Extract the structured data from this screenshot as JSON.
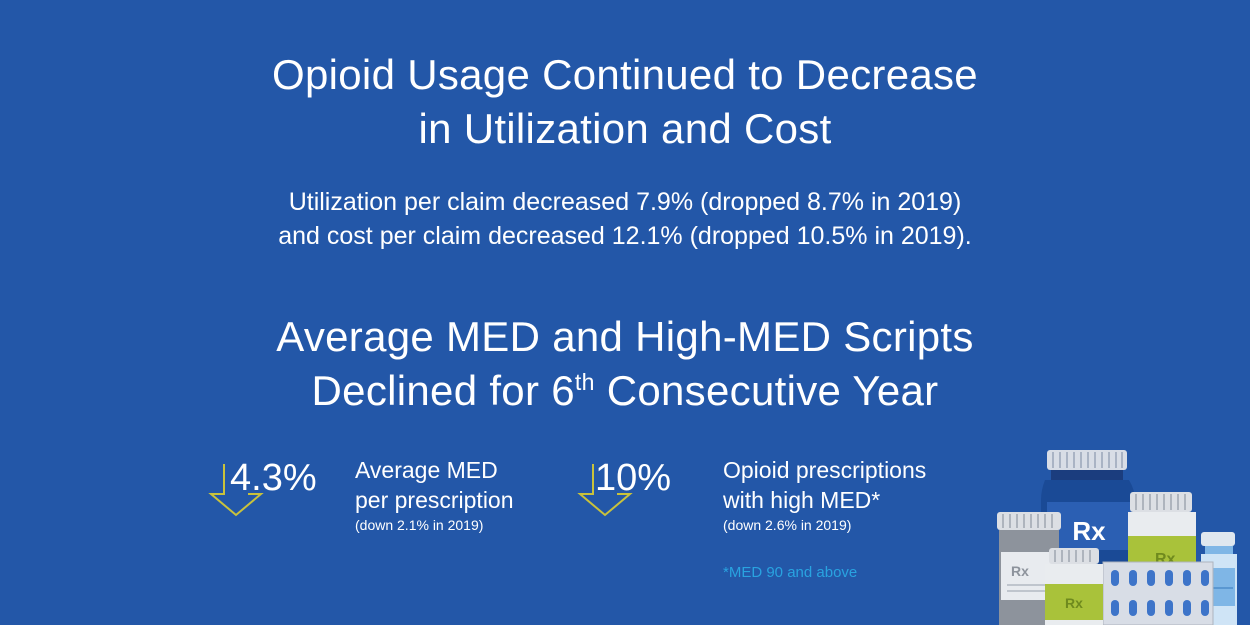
{
  "section1": {
    "title_line1": "Opioid Usage Continued to Decrease",
    "title_line2": "in Utilization and Cost",
    "sub_line1": "Utilization per claim decreased 7.9% (dropped 8.7% in 2019)",
    "sub_line2": "and cost per claim decreased 12.1% (dropped 10.5% in 2019)."
  },
  "section2": {
    "title_line1": "Average MED and High-MED Scripts",
    "title_line2_pre": "Declined for 6",
    "title_line2_sup": "th",
    "title_line2_post": " Consecutive Year"
  },
  "stats": [
    {
      "value": "4.3%",
      "label_line1": "Average MED",
      "label_line2": "per prescription",
      "note": "(down 2.1% in 2019)"
    },
    {
      "value": "10%",
      "label_line1": "Opioid prescriptions",
      "label_line2": "with high MED*",
      "note": "(down 2.6% in 2019)"
    }
  ],
  "footnote": "*MED 90 and above",
  "illustration": {
    "rx_label": "Rx",
    "icon": "pill-bottles-illustration"
  },
  "colors": {
    "background": "#2357a8",
    "arrow": "#c9c23c",
    "footnote": "#29a3e0"
  }
}
